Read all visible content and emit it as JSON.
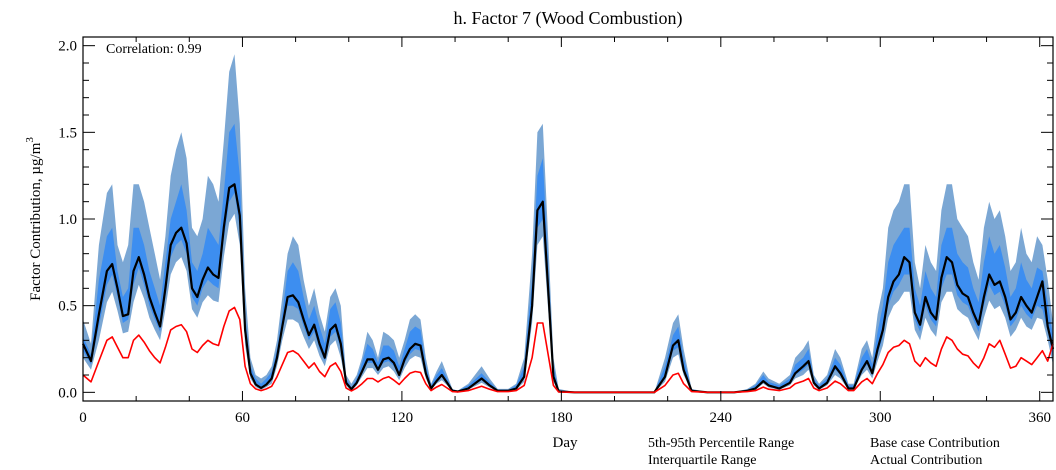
{
  "chart_data": {
    "type": "area",
    "title": "h.  Factor 7 (Wood Combustion)",
    "xlabel": "Day",
    "ylabel": "Factor Contribution,  µg/m",
    "ylabel_superscript": "3",
    "xlim": [
      0,
      365
    ],
    "ylim": [
      -0.05,
      2.05
    ],
    "xticks": [
      0,
      60,
      120,
      180,
      240,
      300,
      360
    ],
    "yticks": [
      0.0,
      0.5,
      1.0,
      1.5,
      2.0
    ],
    "annotation": "Correlation: 0.99",
    "grid": false,
    "legend": [
      {
        "label": "5th-95th Percentile Range",
        "color": "#7ba7d4"
      },
      {
        "label": "Interquartile Range",
        "color": "#3d8ef0"
      },
      {
        "label": "Base case Contribution",
        "color": "#000000"
      },
      {
        "label": "Actual Contribution",
        "color": "#ff0000"
      }
    ],
    "colors": {
      "p5_95": "#7ba7d4",
      "iqr": "#3d8ef0",
      "base": "#000000",
      "actual": "#ff0000"
    },
    "x": [
      0,
      3,
      6,
      9,
      11,
      13,
      15,
      17,
      19,
      21,
      23,
      25,
      27,
      29,
      31,
      33,
      35,
      37,
      39,
      41,
      43,
      45,
      47,
      49,
      51,
      53,
      55,
      57,
      59,
      61,
      63,
      65,
      67,
      69,
      71,
      73,
      75,
      77,
      79,
      81,
      83,
      85,
      87,
      89,
      91,
      93,
      95,
      97,
      99,
      101,
      103,
      105,
      107,
      109,
      111,
      113,
      115,
      117,
      119,
      121,
      123,
      125,
      127,
      129,
      131,
      133,
      135,
      137,
      139,
      141,
      145,
      150,
      153,
      156,
      158,
      160,
      163,
      166,
      169,
      171,
      173,
      175,
      177,
      179,
      185,
      200,
      215,
      219,
      222,
      224,
      226,
      229,
      235,
      245,
      250,
      253,
      256,
      258,
      262,
      266,
      268,
      271,
      273,
      275,
      277,
      280,
      283,
      285,
      288,
      290,
      293,
      295,
      297,
      299,
      301,
      303,
      305,
      307,
      309,
      311,
      313,
      315,
      317,
      319,
      321,
      323,
      325,
      327,
      329,
      331,
      333,
      335,
      337,
      339,
      341,
      343,
      345,
      347,
      349,
      351,
      353,
      355,
      357,
      359,
      361,
      363,
      365
    ],
    "series": [
      {
        "name": "p95",
        "values": [
          0.42,
          0.28,
          0.85,
          1.15,
          1.2,
          0.85,
          0.75,
          0.85,
          1.2,
          1.2,
          1.1,
          0.95,
          0.8,
          0.65,
          0.9,
          1.25,
          1.4,
          1.5,
          1.35,
          0.95,
          0.9,
          1.0,
          1.25,
          1.2,
          1.1,
          1.45,
          1.85,
          1.95,
          1.55,
          0.6,
          0.2,
          0.1,
          0.08,
          0.1,
          0.15,
          0.3,
          0.55,
          0.8,
          0.9,
          0.85,
          0.65,
          0.5,
          0.6,
          0.45,
          0.35,
          0.55,
          0.6,
          0.5,
          0.1,
          0.05,
          0.1,
          0.2,
          0.35,
          0.3,
          0.2,
          0.35,
          0.33,
          0.3,
          0.2,
          0.3,
          0.42,
          0.45,
          0.42,
          0.2,
          0.05,
          0.12,
          0.18,
          0.1,
          0.02,
          0.01,
          0.05,
          0.15,
          0.08,
          0.02,
          0.02,
          0.02,
          0.05,
          0.2,
          0.8,
          1.5,
          1.55,
          0.9,
          0.2,
          0.02,
          0.0,
          0.0,
          0.0,
          0.2,
          0.4,
          0.45,
          0.25,
          0.02,
          0.0,
          0.0,
          0.02,
          0.05,
          0.12,
          0.08,
          0.05,
          0.1,
          0.2,
          0.25,
          0.3,
          0.1,
          0.05,
          0.1,
          0.25,
          0.2,
          0.05,
          0.05,
          0.25,
          0.3,
          0.2,
          0.45,
          0.6,
          0.95,
          1.05,
          1.1,
          1.2,
          1.2,
          0.75,
          0.6,
          0.85,
          0.75,
          0.7,
          1.05,
          1.2,
          1.2,
          1.0,
          0.95,
          0.9,
          0.75,
          0.65,
          0.95,
          1.1,
          1.0,
          1.05,
          0.9,
          0.7,
          0.75,
          0.95,
          0.8,
          0.75,
          0.9,
          0.85,
          0.65,
          0.4
        ]
      },
      {
        "name": "p75",
        "values": [
          0.32,
          0.22,
          0.65,
          0.9,
          0.95,
          0.7,
          0.55,
          0.6,
          0.95,
          0.95,
          0.85,
          0.7,
          0.6,
          0.5,
          0.75,
          1.0,
          1.1,
          1.2,
          1.05,
          0.75,
          0.7,
          0.8,
          0.95,
          0.9,
          0.85,
          1.15,
          1.5,
          1.55,
          1.25,
          0.45,
          0.15,
          0.08,
          0.05,
          0.08,
          0.12,
          0.25,
          0.45,
          0.7,
          0.75,
          0.7,
          0.55,
          0.42,
          0.5,
          0.38,
          0.28,
          0.48,
          0.52,
          0.4,
          0.08,
          0.03,
          0.08,
          0.17,
          0.28,
          0.25,
          0.17,
          0.27,
          0.27,
          0.24,
          0.15,
          0.25,
          0.35,
          0.38,
          0.36,
          0.16,
          0.04,
          0.1,
          0.14,
          0.08,
          0.015,
          0.008,
          0.04,
          0.11,
          0.06,
          0.015,
          0.015,
          0.015,
          0.04,
          0.15,
          0.65,
          1.25,
          1.35,
          0.75,
          0.15,
          0.01,
          0.0,
          0.0,
          0.0,
          0.15,
          0.33,
          0.38,
          0.2,
          0.015,
          0.0,
          0.0,
          0.015,
          0.04,
          0.1,
          0.06,
          0.04,
          0.08,
          0.16,
          0.2,
          0.25,
          0.08,
          0.04,
          0.08,
          0.2,
          0.16,
          0.04,
          0.04,
          0.2,
          0.25,
          0.16,
          0.35,
          0.5,
          0.75,
          0.85,
          0.9,
          0.95,
          0.95,
          0.6,
          0.5,
          0.7,
          0.6,
          0.55,
          0.85,
          0.95,
          0.95,
          0.8,
          0.75,
          0.72,
          0.6,
          0.52,
          0.75,
          0.9,
          0.8,
          0.85,
          0.72,
          0.55,
          0.6,
          0.75,
          0.65,
          0.6,
          0.72,
          0.7,
          0.52,
          0.32
        ]
      },
      {
        "name": "p25",
        "values": [
          0.24,
          0.16,
          0.38,
          0.62,
          0.68,
          0.55,
          0.4,
          0.42,
          0.62,
          0.72,
          0.62,
          0.5,
          0.42,
          0.35,
          0.55,
          0.78,
          0.85,
          0.88,
          0.8,
          0.55,
          0.5,
          0.6,
          0.65,
          0.62,
          0.6,
          0.88,
          1.1,
          1.15,
          0.95,
          0.32,
          0.1,
          0.04,
          0.02,
          0.04,
          0.07,
          0.18,
          0.35,
          0.5,
          0.5,
          0.48,
          0.38,
          0.3,
          0.35,
          0.25,
          0.18,
          0.32,
          0.35,
          0.25,
          0.05,
          0.015,
          0.05,
          0.11,
          0.17,
          0.17,
          0.12,
          0.17,
          0.18,
          0.15,
          0.09,
          0.17,
          0.22,
          0.25,
          0.24,
          0.1,
          0.02,
          0.06,
          0.09,
          0.05,
          0.008,
          0.004,
          0.02,
          0.07,
          0.035,
          0.008,
          0.008,
          0.008,
          0.02,
          0.08,
          0.45,
          0.95,
          1.0,
          0.55,
          0.08,
          0.004,
          0.0,
          0.0,
          0.0,
          0.08,
          0.24,
          0.26,
          0.12,
          0.008,
          0.0,
          0.0,
          0.008,
          0.02,
          0.06,
          0.035,
          0.02,
          0.05,
          0.1,
          0.13,
          0.16,
          0.05,
          0.02,
          0.05,
          0.13,
          0.1,
          0.02,
          0.02,
          0.12,
          0.16,
          0.1,
          0.22,
          0.32,
          0.5,
          0.58,
          0.62,
          0.68,
          0.68,
          0.42,
          0.35,
          0.5,
          0.42,
          0.38,
          0.6,
          0.68,
          0.68,
          0.56,
          0.52,
          0.5,
          0.42,
          0.35,
          0.5,
          0.62,
          0.56,
          0.58,
          0.5,
          0.38,
          0.42,
          0.5,
          0.45,
          0.42,
          0.5,
          0.48,
          0.35,
          0.2
        ]
      },
      {
        "name": "p5",
        "values": [
          0.2,
          0.13,
          0.3,
          0.52,
          0.58,
          0.47,
          0.34,
          0.35,
          0.52,
          0.62,
          0.54,
          0.43,
          0.36,
          0.3,
          0.48,
          0.68,
          0.75,
          0.78,
          0.7,
          0.48,
          0.43,
          0.52,
          0.56,
          0.53,
          0.52,
          0.78,
          0.98,
          1.03,
          0.85,
          0.27,
          0.08,
          0.03,
          0.015,
          0.03,
          0.05,
          0.15,
          0.3,
          0.42,
          0.42,
          0.4,
          0.32,
          0.25,
          0.3,
          0.21,
          0.15,
          0.27,
          0.3,
          0.2,
          0.04,
          0.01,
          0.04,
          0.09,
          0.14,
          0.14,
          0.1,
          0.14,
          0.15,
          0.12,
          0.07,
          0.14,
          0.19,
          0.21,
          0.2,
          0.08,
          0.015,
          0.05,
          0.07,
          0.04,
          0.006,
          0.003,
          0.015,
          0.055,
          0.028,
          0.006,
          0.006,
          0.006,
          0.015,
          0.06,
          0.4,
          0.85,
          0.9,
          0.48,
          0.06,
          0.003,
          0.0,
          0.0,
          0.0,
          0.06,
          0.2,
          0.22,
          0.1,
          0.006,
          0.0,
          0.0,
          0.006,
          0.015,
          0.05,
          0.028,
          0.015,
          0.04,
          0.08,
          0.1,
          0.13,
          0.04,
          0.015,
          0.04,
          0.1,
          0.08,
          0.015,
          0.015,
          0.1,
          0.13,
          0.08,
          0.18,
          0.27,
          0.43,
          0.5,
          0.53,
          0.58,
          0.58,
          0.36,
          0.3,
          0.43,
          0.36,
          0.32,
          0.52,
          0.58,
          0.58,
          0.48,
          0.45,
          0.43,
          0.36,
          0.3,
          0.43,
          0.53,
          0.48,
          0.5,
          0.43,
          0.32,
          0.36,
          0.43,
          0.38,
          0.36,
          0.43,
          0.42,
          0.3,
          0.16
        ]
      },
      {
        "name": "Base case Contribution",
        "values": [
          0.28,
          0.18,
          0.45,
          0.7,
          0.74,
          0.6,
          0.44,
          0.45,
          0.7,
          0.78,
          0.68,
          0.55,
          0.46,
          0.38,
          0.6,
          0.85,
          0.92,
          0.95,
          0.86,
          0.6,
          0.55,
          0.65,
          0.72,
          0.68,
          0.66,
          0.95,
          1.18,
          1.2,
          1.02,
          0.36,
          0.11,
          0.045,
          0.025,
          0.045,
          0.08,
          0.2,
          0.38,
          0.55,
          0.56,
          0.52,
          0.42,
          0.33,
          0.39,
          0.28,
          0.2,
          0.36,
          0.39,
          0.28,
          0.055,
          0.018,
          0.055,
          0.12,
          0.19,
          0.19,
          0.13,
          0.19,
          0.2,
          0.17,
          0.1,
          0.19,
          0.25,
          0.28,
          0.27,
          0.11,
          0.022,
          0.065,
          0.1,
          0.055,
          0.009,
          0.005,
          0.022,
          0.08,
          0.04,
          0.009,
          0.009,
          0.009,
          0.022,
          0.09,
          0.5,
          1.05,
          1.1,
          0.6,
          0.09,
          0.005,
          0.0,
          0.0,
          0.0,
          0.09,
          0.27,
          0.3,
          0.13,
          0.009,
          0.0,
          0.0,
          0.009,
          0.022,
          0.065,
          0.04,
          0.022,
          0.055,
          0.11,
          0.15,
          0.18,
          0.055,
          0.022,
          0.055,
          0.15,
          0.11,
          0.022,
          0.022,
          0.13,
          0.18,
          0.11,
          0.25,
          0.36,
          0.55,
          0.64,
          0.68,
          0.78,
          0.75,
          0.46,
          0.39,
          0.55,
          0.46,
          0.42,
          0.66,
          0.78,
          0.75,
          0.62,
          0.57,
          0.55,
          0.46,
          0.39,
          0.55,
          0.68,
          0.62,
          0.64,
          0.55,
          0.42,
          0.46,
          0.55,
          0.5,
          0.46,
          0.55,
          0.64,
          0.38,
          0.25
        ]
      },
      {
        "name": "Actual Contribution",
        "values": [
          0.1,
          0.06,
          0.18,
          0.3,
          0.32,
          0.26,
          0.2,
          0.2,
          0.3,
          0.33,
          0.29,
          0.24,
          0.2,
          0.17,
          0.26,
          0.36,
          0.38,
          0.39,
          0.35,
          0.25,
          0.23,
          0.27,
          0.3,
          0.28,
          0.27,
          0.38,
          0.47,
          0.49,
          0.42,
          0.15,
          0.05,
          0.02,
          0.01,
          0.02,
          0.035,
          0.09,
          0.16,
          0.23,
          0.24,
          0.22,
          0.18,
          0.14,
          0.17,
          0.12,
          0.09,
          0.15,
          0.17,
          0.12,
          0.025,
          0.008,
          0.025,
          0.05,
          0.08,
          0.08,
          0.06,
          0.08,
          0.09,
          0.07,
          0.045,
          0.08,
          0.11,
          0.12,
          0.115,
          0.05,
          0.01,
          0.03,
          0.045,
          0.025,
          0.004,
          0.002,
          0.01,
          0.035,
          0.018,
          0.004,
          0.004,
          0.004,
          0.01,
          0.04,
          0.2,
          0.4,
          0.4,
          0.22,
          0.04,
          0.002,
          0.0,
          0.0,
          0.0,
          0.04,
          0.1,
          0.11,
          0.05,
          0.004,
          0.0,
          0.0,
          0.004,
          0.01,
          0.03,
          0.018,
          0.01,
          0.025,
          0.05,
          0.065,
          0.08,
          0.025,
          0.01,
          0.025,
          0.065,
          0.05,
          0.01,
          0.01,
          0.06,
          0.08,
          0.05,
          0.11,
          0.16,
          0.23,
          0.26,
          0.27,
          0.3,
          0.28,
          0.18,
          0.15,
          0.2,
          0.17,
          0.15,
          0.25,
          0.32,
          0.3,
          0.25,
          0.22,
          0.21,
          0.17,
          0.14,
          0.2,
          0.28,
          0.26,
          0.3,
          0.22,
          0.14,
          0.15,
          0.2,
          0.18,
          0.16,
          0.2,
          0.24,
          0.18,
          0.28
        ]
      }
    ]
  }
}
